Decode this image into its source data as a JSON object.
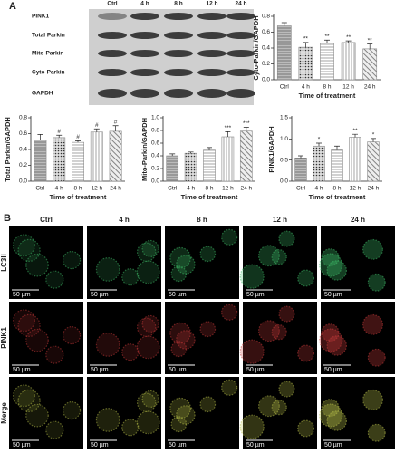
{
  "panel_labels": [
    "A",
    "B"
  ],
  "blot": {
    "columns": [
      "Ctrl",
      "4 h",
      "8 h",
      "12 h",
      "24 h"
    ],
    "rows": [
      "PINK1",
      "Total Parkin",
      "Mito-Parkin",
      "Cyto-Parkin",
      "GAPDH"
    ]
  },
  "chart_data": [
    {
      "type": "bar",
      "y_label": "Cyto-Parkin/GAPDH",
      "x_label": "Time of treatment",
      "categories": [
        "Ctrl",
        "4 h",
        "8 h",
        "12 h",
        "24 h"
      ],
      "values": [
        0.68,
        0.41,
        0.46,
        0.47,
        0.39
      ],
      "errors": [
        0.04,
        0.06,
        0.04,
        0.02,
        0.06
      ],
      "annotations": [
        null,
        "**",
        "**",
        "**",
        "**"
      ],
      "color": "#888888",
      "ylim": [
        0,
        0.8
      ],
      "yticks": [
        {
          "value": 0,
          "label": "0.0"
        },
        0.2,
        0.4,
        0.6,
        0.8
      ]
    },
    {
      "type": "bar",
      "y_label": "Total Parkin/GAPDH",
      "x_label": "Time of treatment",
      "categories": [
        "Ctrl",
        "4 h",
        "8 h",
        "12 h",
        "24 h"
      ],
      "values": [
        0.52,
        0.55,
        0.49,
        0.62,
        0.63
      ],
      "errors": [
        0.07,
        0.03,
        0.02,
        0.04,
        0.07
      ],
      "annotations": [
        null,
        "#",
        "#",
        "#",
        "#"
      ],
      "color": "#888888",
      "ylim": [
        0,
        0.8
      ],
      "yticks": [
        {
          "value": 0,
          "label": "0.0"
        },
        0.2,
        0.4,
        0.6,
        0.8
      ]
    },
    {
      "type": "bar",
      "y_label": "Mito-Parkin/GAPDH",
      "x_label": "Time of treatment",
      "categories": [
        "Ctrl",
        "4 h",
        "8 h",
        "12 h",
        "24 h"
      ],
      "values": [
        0.4,
        0.44,
        0.49,
        0.7,
        0.79
      ],
      "errors": [
        0.03,
        0.02,
        0.04,
        0.08,
        0.06
      ],
      "annotations": [
        null,
        null,
        null,
        "***",
        "***"
      ],
      "color": "#888888",
      "ylim": [
        0,
        1.0
      ],
      "yticks": [
        {
          "value": 0,
          "label": "0.0"
        },
        0.2,
        0.4,
        0.6,
        0.8,
        {
          "value": 1.0,
          "label": "1.0"
        }
      ]
    },
    {
      "type": "bar",
      "y_label": "PINK1/GAPDH",
      "x_label": "Time of treatment",
      "categories": [
        "Ctrl",
        "4 h",
        "8 h",
        "12 h",
        "24 h"
      ],
      "values": [
        0.55,
        0.83,
        0.74,
        1.04,
        0.93
      ],
      "errors": [
        0.05,
        0.07,
        0.09,
        0.07,
        0.08
      ],
      "annotations": [
        null,
        "*",
        null,
        "**",
        "*"
      ],
      "color": "#888888",
      "ylim": [
        0,
        1.5
      ],
      "yticks": [
        {
          "value": 0,
          "label": "0.0"
        },
        0.5,
        {
          "value": 1.0,
          "label": "1.0"
        },
        1.5
      ]
    }
  ],
  "panel_b": {
    "columns": [
      "Ctrl",
      "4 h",
      "8 h",
      "12 h",
      "24 h"
    ],
    "rows": [
      "LC3II",
      "PINK1",
      "Merge"
    ],
    "scale_bar": "50 µm"
  }
}
